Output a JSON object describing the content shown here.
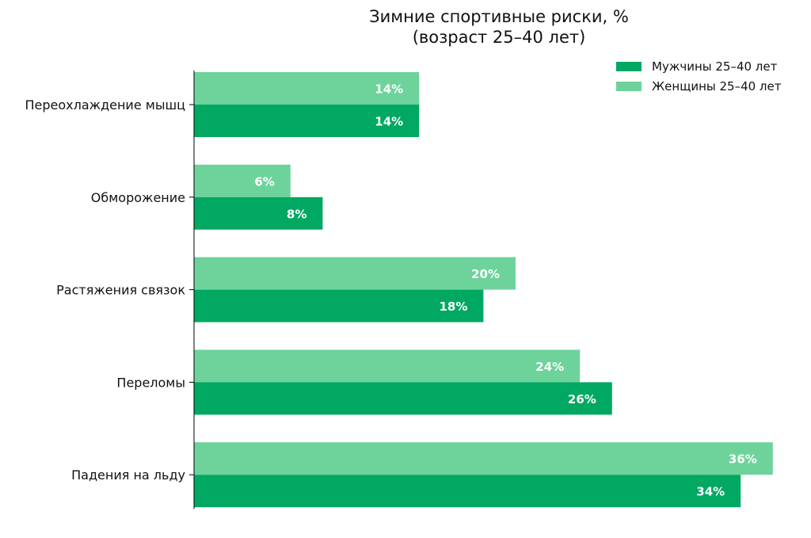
{
  "chart_data": {
    "type": "bar",
    "orientation": "horizontal",
    "title": [
      "Зимние спортивные риски, %",
      "(возраст 25–40 лет)"
    ],
    "categories": [
      "Переохлаждение мышц",
      "Обморожение",
      "Растяжения связок",
      "Переломы",
      "Падения на льду"
    ],
    "series": [
      {
        "name": "Женщины 25–40 лет",
        "values": [
          14,
          6,
          20,
          24,
          36
        ],
        "color": "#6dd39b"
      },
      {
        "name": "Мужчины 25–40 лет",
        "values": [
          14,
          8,
          18,
          26,
          34
        ],
        "color": "#00a862"
      }
    ],
    "data_labels": {
      "women": [
        "14%",
        "6%",
        "20%",
        "24%",
        "36%"
      ],
      "men": [
        "14%",
        "8%",
        "18%",
        "26%",
        "34%"
      ]
    },
    "legend": {
      "placement": "top-right",
      "items": [
        {
          "label": "Мужчины 25–40 лет",
          "color": "#00a862"
        },
        {
          "label": "Женщины 25–40 лет",
          "color": "#6dd39b"
        }
      ]
    },
    "xlim": [
      0,
      37
    ],
    "xaxis_visible": false,
    "grid": false,
    "value_unit": "%"
  }
}
